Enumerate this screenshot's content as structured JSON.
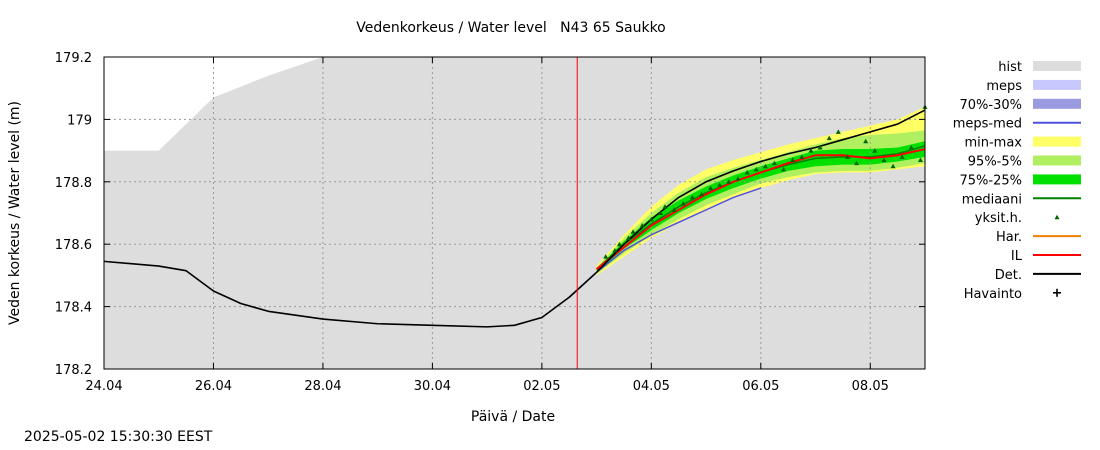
{
  "chart_data": {
    "type": "line",
    "title": "Vedenkorkeus / Water level   N43 65 Saukko",
    "xlabel": "Päivä / Date",
    "ylabel": "Veden korkeus / Water level (m)",
    "ylim": [
      178.2,
      179.2
    ],
    "xlim": [
      "2025-04-24",
      "2025-05-09"
    ],
    "x_ticks": [
      "24.04",
      "26.04",
      "28.04",
      "30.04",
      "02.05",
      "04.05",
      "06.05",
      "08.05"
    ],
    "y_ticks": [
      "178.2",
      "178.4",
      "178.6",
      "178.8",
      "179",
      "179.2"
    ],
    "grid": true,
    "legend_position": "right",
    "forecast_start": "2025-05-02T15:30",
    "colors": {
      "hist": "#dddddd",
      "meps": "#c8c8ff",
      "range_70_30": "#9a9ae0",
      "meps_med": "#5050e0",
      "min_max": "#ffff66",
      "p95_5": "#b0f060",
      "p75_25": "#00e000",
      "mediaani": "#008000",
      "yksit": "#006400",
      "har": "#f08000",
      "il": "#ff0000",
      "det": "#000000",
      "havainto": "#000000",
      "now_line": "#ff0000"
    },
    "legend": [
      {
        "key": "hist",
        "label": "hist",
        "style": "box"
      },
      {
        "key": "meps",
        "label": "meps",
        "style": "box"
      },
      {
        "key": "range_70_30",
        "label": "70%-30%",
        "style": "box"
      },
      {
        "key": "meps_med",
        "label": "meps-med",
        "style": "line"
      },
      {
        "key": "min_max",
        "label": "min-max",
        "style": "box"
      },
      {
        "key": "p95_5",
        "label": "95%-5%",
        "style": "box"
      },
      {
        "key": "p75_25",
        "label": "75%-25%",
        "style": "box"
      },
      {
        "key": "mediaani",
        "label": "mediaani",
        "style": "line"
      },
      {
        "key": "yksit",
        "label": "yksit.h.",
        "style": "tri"
      },
      {
        "key": "har",
        "label": "Har.",
        "style": "line"
      },
      {
        "key": "il",
        "label": "IL",
        "style": "line"
      },
      {
        "key": "det",
        "label": "Det.",
        "style": "line"
      },
      {
        "key": "havainto",
        "label": "Havainto",
        "style": "plus"
      }
    ],
    "hist_upper": [
      [
        "2025-04-24",
        178.9
      ],
      [
        "2025-04-25",
        178.9
      ],
      [
        "2025-04-26",
        179.07
      ],
      [
        "2025-04-27",
        179.14
      ],
      [
        "2025-04-28",
        179.2
      ],
      [
        "2025-05-09",
        179.2
      ]
    ],
    "det": [
      [
        "2025-04-24",
        178.545
      ],
      [
        "2025-04-25",
        178.53
      ],
      [
        "2025-04-25T12",
        178.515
      ],
      [
        "2025-04-26",
        178.45
      ],
      [
        "2025-04-26T12",
        178.41
      ],
      [
        "2025-04-27",
        178.385
      ],
      [
        "2025-04-28",
        178.36
      ],
      [
        "2025-04-29",
        178.345
      ],
      [
        "2025-04-30",
        178.34
      ],
      [
        "2025-05-01",
        178.335
      ],
      [
        "2025-05-01T12",
        178.34
      ],
      [
        "2025-05-02",
        178.365
      ],
      [
        "2025-05-02T12",
        178.43
      ],
      [
        "2025-05-03",
        178.51
      ],
      [
        "2025-05-03T12",
        178.6
      ],
      [
        "2025-05-04",
        178.68
      ],
      [
        "2025-05-04T12",
        178.75
      ],
      [
        "2025-05-05",
        178.8
      ],
      [
        "2025-05-05T12",
        178.835
      ],
      [
        "2025-05-06",
        178.865
      ],
      [
        "2025-05-06T12",
        178.89
      ],
      [
        "2025-05-07",
        178.91
      ],
      [
        "2025-05-07T12",
        178.935
      ],
      [
        "2025-05-08",
        178.96
      ],
      [
        "2025-05-08T12",
        178.985
      ],
      [
        "2025-05-09",
        179.03
      ]
    ],
    "meps_med": [
      [
        "2025-05-02T12",
        178.43
      ],
      [
        "2025-05-03",
        178.51
      ],
      [
        "2025-05-03T12",
        178.58
      ],
      [
        "2025-05-04",
        178.63
      ],
      [
        "2025-05-04T12",
        178.67
      ],
      [
        "2025-05-05",
        178.71
      ],
      [
        "2025-05-05T12",
        178.75
      ],
      [
        "2025-05-06",
        178.78
      ]
    ],
    "il": [
      [
        "2025-05-03",
        178.52
      ],
      [
        "2025-05-03T12",
        178.59
      ],
      [
        "2025-05-04",
        178.66
      ],
      [
        "2025-05-04T12",
        178.71
      ],
      [
        "2025-05-05",
        178.76
      ],
      [
        "2025-05-05T12",
        178.8
      ],
      [
        "2025-05-06",
        178.83
      ],
      [
        "2025-05-06T12",
        178.86
      ],
      [
        "2025-05-07",
        178.885
      ],
      [
        "2025-05-07T12",
        178.885
      ],
      [
        "2025-05-08",
        178.875
      ],
      [
        "2025-05-08T12",
        178.885
      ],
      [
        "2025-05-09",
        178.905
      ]
    ],
    "mediaani": [
      [
        "2025-05-03",
        178.52
      ],
      [
        "2025-05-03T12",
        178.6
      ],
      [
        "2025-05-04",
        178.665
      ],
      [
        "2025-05-04T12",
        178.72
      ],
      [
        "2025-05-05",
        178.765
      ],
      [
        "2025-05-05T12",
        178.8
      ],
      [
        "2025-05-06",
        178.83
      ],
      [
        "2025-05-06T12",
        178.855
      ],
      [
        "2025-05-07",
        178.875
      ],
      [
        "2025-05-07T12",
        178.88
      ],
      [
        "2025-05-08",
        178.88
      ],
      [
        "2025-05-08T12",
        178.89
      ],
      [
        "2025-05-09",
        178.915
      ]
    ],
    "min_max_band": [
      [
        "2025-05-03",
        178.5,
        178.53
      ],
      [
        "2025-05-03T12",
        178.56,
        178.63
      ],
      [
        "2025-05-04",
        178.62,
        178.72
      ],
      [
        "2025-05-04T12",
        178.67,
        178.79
      ],
      [
        "2025-05-05",
        178.71,
        178.84
      ],
      [
        "2025-05-05T12",
        178.75,
        178.87
      ],
      [
        "2025-05-06",
        178.78,
        178.895
      ],
      [
        "2025-05-06T12",
        178.805,
        178.92
      ],
      [
        "2025-05-07",
        178.825,
        178.94
      ],
      [
        "2025-05-07T12",
        178.83,
        178.96
      ],
      [
        "2025-05-08",
        178.83,
        178.98
      ],
      [
        "2025-05-08T12",
        178.84,
        179.0
      ],
      [
        "2025-05-09",
        178.85,
        179.04
      ]
    ],
    "p95_5_band": [
      [
        "2025-05-03",
        178.505,
        178.525
      ],
      [
        "2025-05-03T12",
        178.57,
        178.62
      ],
      [
        "2025-05-04",
        178.63,
        178.7
      ],
      [
        "2025-05-04T12",
        178.68,
        178.765
      ],
      [
        "2025-05-05",
        178.725,
        178.815
      ],
      [
        "2025-05-05T12",
        178.76,
        178.845
      ],
      [
        "2025-05-06",
        178.795,
        178.87
      ],
      [
        "2025-05-06T12",
        178.815,
        178.895
      ],
      [
        "2025-05-07",
        178.83,
        178.92
      ],
      [
        "2025-05-07T12",
        178.835,
        178.94
      ],
      [
        "2025-05-08",
        178.835,
        178.95
      ],
      [
        "2025-05-08T12",
        178.845,
        178.955
      ],
      [
        "2025-05-09",
        178.86,
        178.965
      ]
    ],
    "p75_25_band": [
      [
        "2025-05-03",
        178.51,
        178.52
      ],
      [
        "2025-05-03T12",
        178.585,
        178.61
      ],
      [
        "2025-05-04",
        178.645,
        178.685
      ],
      [
        "2025-05-04T12",
        178.7,
        178.74
      ],
      [
        "2025-05-05",
        178.745,
        178.785
      ],
      [
        "2025-05-05T12",
        178.78,
        178.82
      ],
      [
        "2025-05-06",
        178.81,
        178.85
      ],
      [
        "2025-05-06T12",
        178.835,
        178.875
      ],
      [
        "2025-05-07",
        178.85,
        178.9
      ],
      [
        "2025-05-07T12",
        178.855,
        178.905
      ],
      [
        "2025-05-08",
        178.855,
        178.905
      ],
      [
        "2025-05-08T12",
        178.865,
        178.91
      ],
      [
        "2025-05-09",
        178.88,
        178.93
      ]
    ],
    "yksit": [
      [
        "2025-05-03T04",
        178.56
      ],
      [
        "2025-05-03T08",
        178.58
      ],
      [
        "2025-05-03T10",
        178.6
      ],
      [
        "2025-05-03T14",
        178.62
      ],
      [
        "2025-05-03T16",
        178.64
      ],
      [
        "2025-05-03T20",
        178.66
      ],
      [
        "2025-05-04",
        178.68
      ],
      [
        "2025-05-04T04",
        178.7
      ],
      [
        "2025-05-04T06",
        178.72
      ],
      [
        "2025-05-04T10",
        178.71
      ],
      [
        "2025-05-04T14",
        178.73
      ],
      [
        "2025-05-04T18",
        178.75
      ],
      [
        "2025-05-04T22",
        178.76
      ],
      [
        "2025-05-05T02",
        178.78
      ],
      [
        "2025-05-05T06",
        178.79
      ],
      [
        "2025-05-05T10",
        178.8
      ],
      [
        "2025-05-05T14",
        178.81
      ],
      [
        "2025-05-05T18",
        178.83
      ],
      [
        "2025-05-05T22",
        178.84
      ],
      [
        "2025-05-06T02",
        178.85
      ],
      [
        "2025-05-06T06",
        178.86
      ],
      [
        "2025-05-06T10",
        178.84
      ],
      [
        "2025-05-06T14",
        178.87
      ],
      [
        "2025-05-06T18",
        178.88
      ],
      [
        "2025-05-06T22",
        178.9
      ],
      [
        "2025-05-07T02",
        178.91
      ],
      [
        "2025-05-07T06",
        178.94
      ],
      [
        "2025-05-07T10",
        178.96
      ],
      [
        "2025-05-07T14",
        178.88
      ],
      [
        "2025-05-07T18",
        178.86
      ],
      [
        "2025-05-07T22",
        178.93
      ],
      [
        "2025-05-08T02",
        178.9
      ],
      [
        "2025-05-08T06",
        178.87
      ],
      [
        "2025-05-08T10",
        178.85
      ],
      [
        "2025-05-08T14",
        178.88
      ],
      [
        "2025-05-08T18",
        178.91
      ],
      [
        "2025-05-08T22",
        178.87
      ],
      [
        "2025-05-09",
        179.04
      ]
    ]
  },
  "timestamp": "2025-05-02 15:30:30 EEST"
}
